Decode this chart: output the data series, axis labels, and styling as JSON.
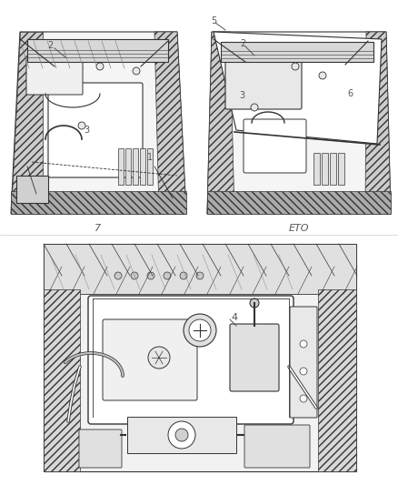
{
  "background_color": "#ffffff",
  "fig_width": 4.38,
  "fig_height": 5.33,
  "dpi": 100,
  "top_left_label": "7",
  "top_right_label": "ETO",
  "top_left_numbers": [
    "1",
    "2",
    "3"
  ],
  "top_right_numbers": [
    "2",
    "3",
    "5",
    "6"
  ],
  "bottom_numbers": [
    "4"
  ],
  "label_fontsize": 8,
  "number_fontsize": 7,
  "line_color": "#555555",
  "text_color": "#555555",
  "drawing_line_color": "#333333"
}
